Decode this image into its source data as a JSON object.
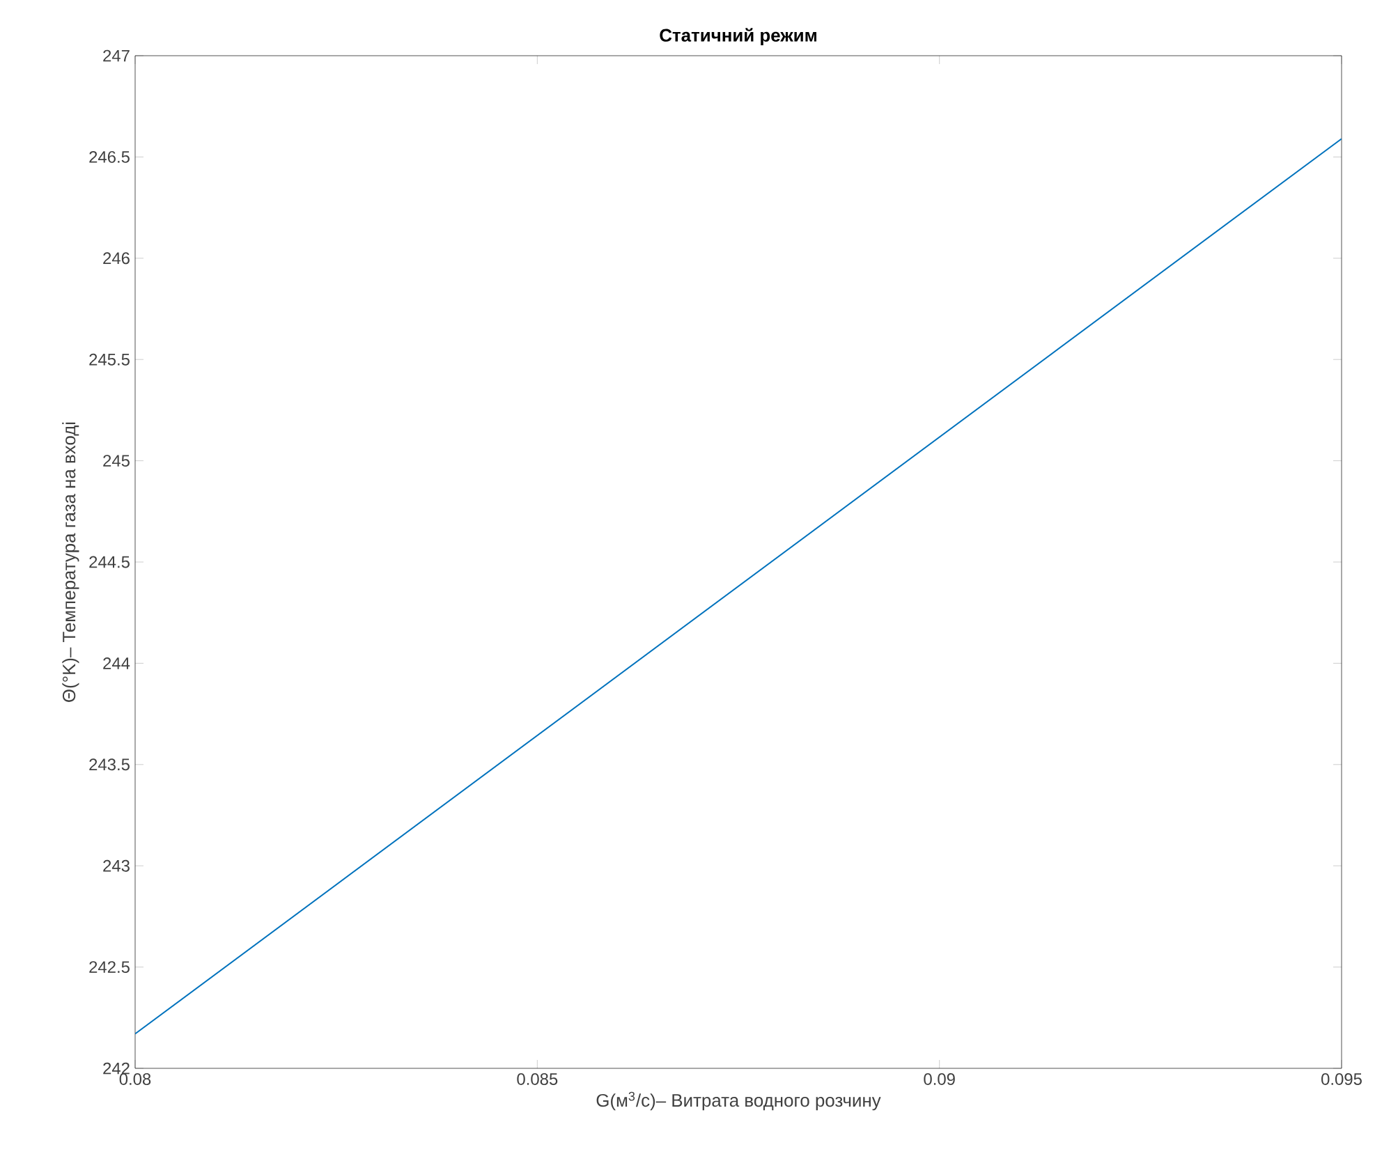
{
  "chart_data": {
    "type": "line",
    "title": "Статичний режим",
    "xlabel": "G(м$^{3}$/с)– Витрата водного розчину",
    "ylabel": "Θ(°K)– Температура газа на вході",
    "xlim": [
      0.08,
      0.095
    ],
    "xticks": [
      0.08,
      0.085,
      0.09,
      0.095
    ],
    "ylim": [
      242,
      247
    ],
    "yticks": [
      242,
      242.5,
      243,
      243.5,
      244,
      244.5,
      245,
      245.5,
      246,
      246.5,
      247
    ],
    "series": [
      {
        "color": "#0072bd",
        "x": [
          0.08,
          0.095
        ],
        "values": [
          242.17,
          246.59
        ]
      }
    ]
  }
}
